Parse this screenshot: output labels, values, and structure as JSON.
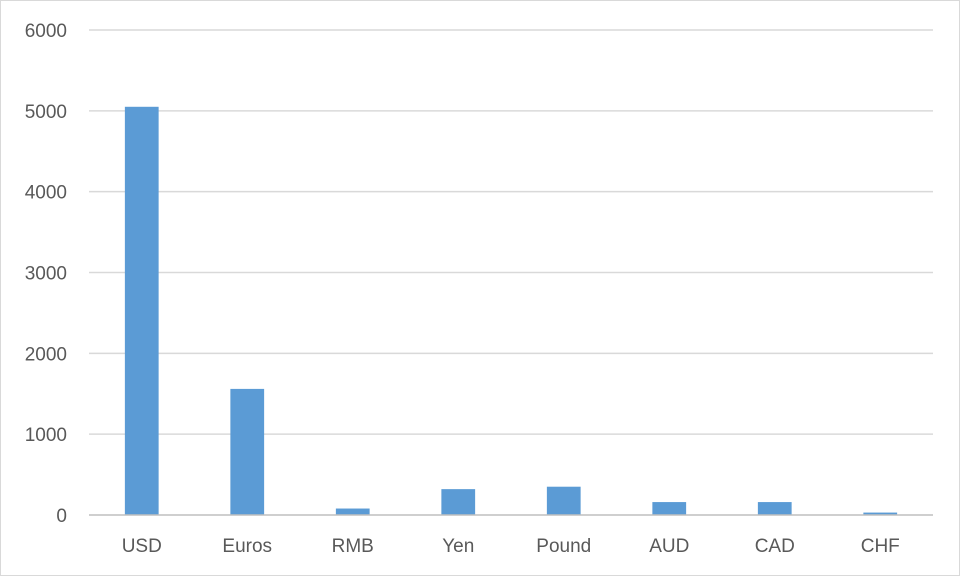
{
  "chart_data": {
    "type": "bar",
    "categories": [
      "USD",
      "Euros",
      "RMB",
      "Yen",
      "Pound",
      "AUD",
      "CAD",
      "CHF"
    ],
    "values": [
      5050,
      1560,
      80,
      320,
      350,
      160,
      160,
      30
    ],
    "title": "",
    "xlabel": "",
    "ylabel": "",
    "ylim": [
      0,
      6000
    ],
    "yticks": [
      0,
      1000,
      2000,
      3000,
      4000,
      5000,
      6000
    ],
    "grid": true,
    "legend": "none",
    "bar_color": "#5b9bd5",
    "grid_color": "#d9d9d9",
    "axis_color": "#bfbfbf",
    "label_color": "#595959"
  }
}
